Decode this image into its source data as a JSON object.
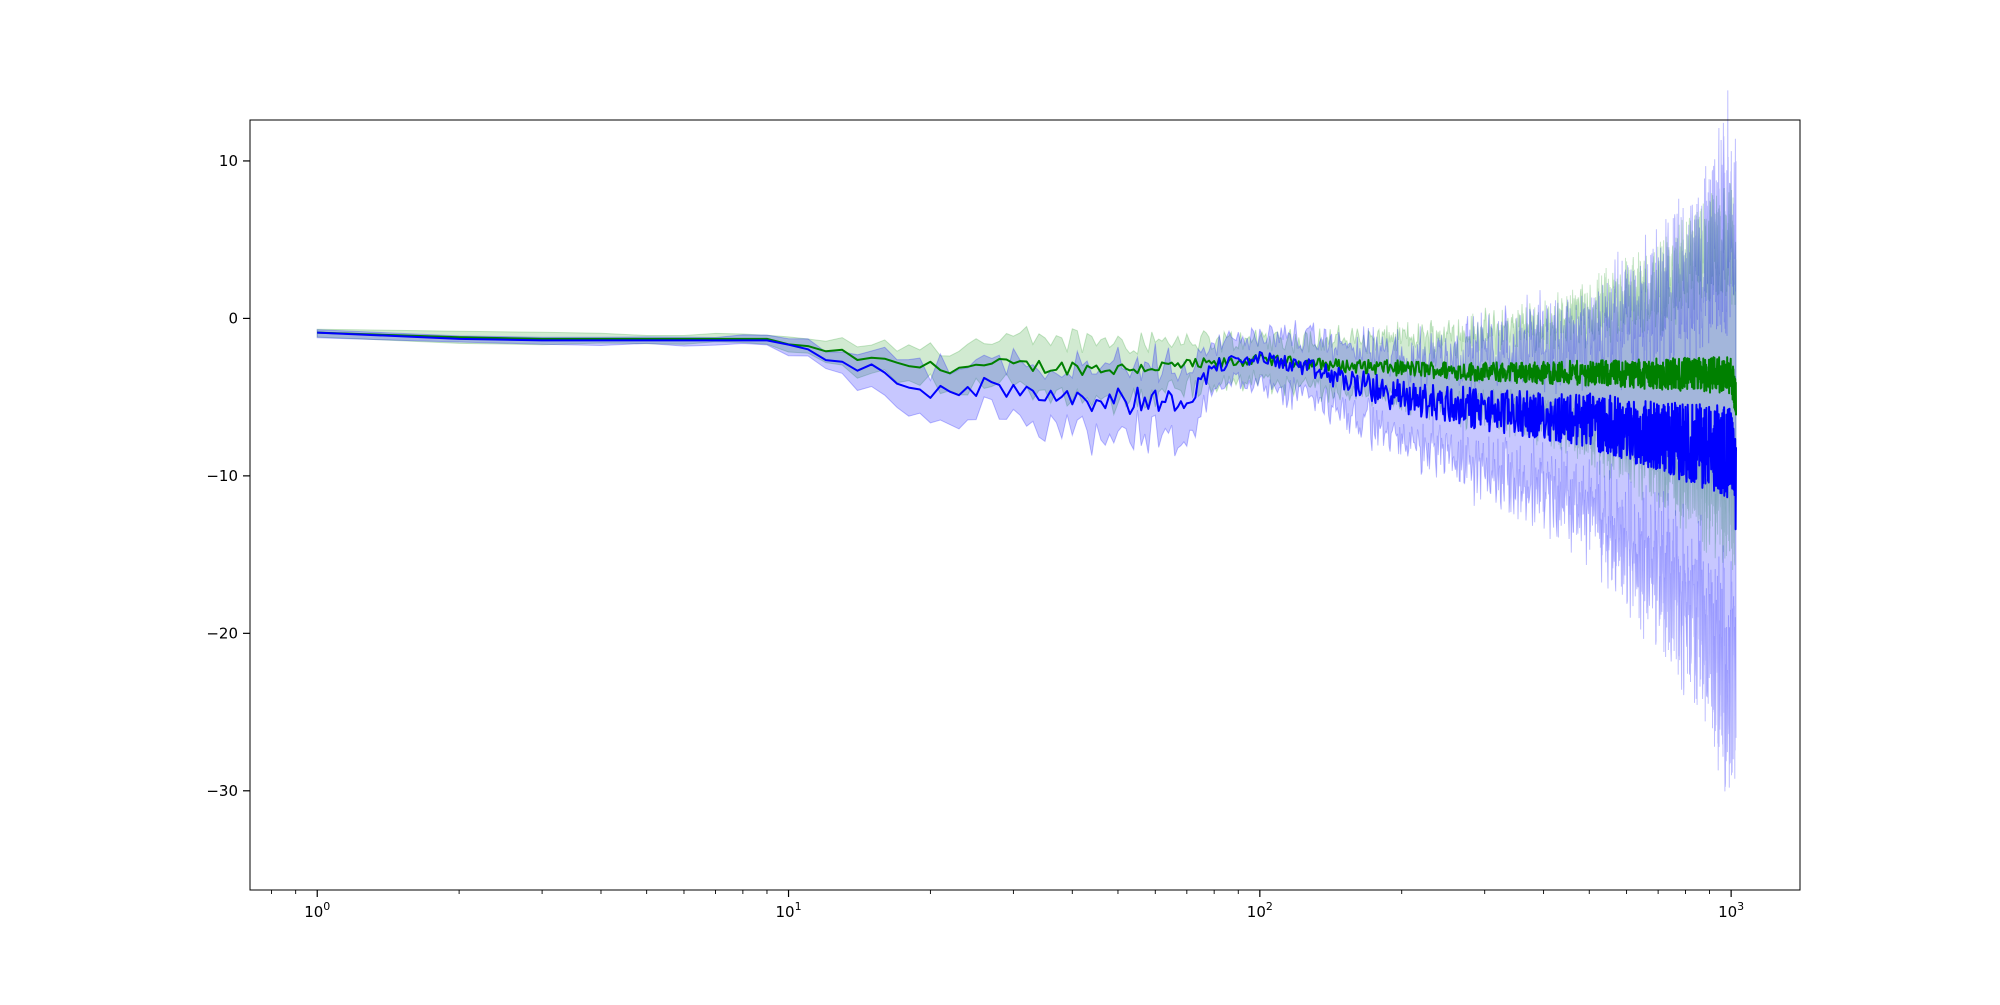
{
  "chart_data": {
    "type": "line",
    "title": "",
    "xlabel": "",
    "ylabel": "",
    "xscale": "log",
    "xlim": [
      0.72,
      1400
    ],
    "ylim": [
      -36.3,
      12.6
    ],
    "grid": false,
    "legend": "none",
    "x_ticks": [
      {
        "value": 1,
        "base": "10",
        "exp": "0"
      },
      {
        "value": 10,
        "base": "10",
        "exp": "1"
      },
      {
        "value": 100,
        "base": "10",
        "exp": "2"
      },
      {
        "value": 1000,
        "base": "10",
        "exp": "3"
      }
    ],
    "y_ticks": [
      {
        "value": 10,
        "label": "10"
      },
      {
        "value": 0,
        "label": "0"
      },
      {
        "value": -10,
        "label": "−10"
      },
      {
        "value": -20,
        "label": "−20"
      },
      {
        "value": -30,
        "label": "−30"
      }
    ],
    "x_range": [
      1,
      1024
    ],
    "series": [
      {
        "color": "#008000",
        "band_color": "#2ca02c",
        "anchors": [
          [
            1,
            -0.9
          ],
          [
            2,
            -1.2
          ],
          [
            3,
            -1.3
          ],
          [
            5,
            -1.3
          ],
          [
            9,
            -1.3
          ],
          [
            10,
            -1.8
          ],
          [
            12,
            -2.0
          ],
          [
            15,
            -2.7
          ],
          [
            20,
            -3.1
          ],
          [
            30,
            -3.0
          ],
          [
            50,
            -3.2
          ],
          [
            80,
            -2.9
          ],
          [
            100,
            -2.6
          ],
          [
            150,
            -3.0
          ],
          [
            300,
            -3.4
          ],
          [
            600,
            -3.5
          ],
          [
            1000,
            -3.6
          ],
          [
            1024,
            -5.0
          ]
        ],
        "band_anchors": [
          [
            1,
            0.3
          ],
          [
            2,
            0.4
          ],
          [
            9,
            0.3
          ],
          [
            10,
            0.6
          ],
          [
            20,
            1.5
          ],
          [
            50,
            2.2
          ],
          [
            80,
            1.6
          ],
          [
            100,
            1.5
          ],
          [
            200,
            2.2
          ],
          [
            400,
            3.5
          ],
          [
            700,
            6.5
          ],
          [
            1000,
            10.0
          ],
          [
            1024,
            9.5
          ]
        ],
        "noise_anchors": [
          [
            1,
            0
          ],
          [
            9,
            0
          ],
          [
            10,
            0.2
          ],
          [
            30,
            0.5
          ],
          [
            80,
            0.4
          ],
          [
            100,
            0.3
          ],
          [
            200,
            0.5
          ],
          [
            500,
            0.8
          ],
          [
            1000,
            1.2
          ]
        ]
      },
      {
        "color": "#0000ff",
        "band_color": "#0000ff",
        "anchors": [
          [
            1,
            -0.9
          ],
          [
            2,
            -1.3
          ],
          [
            3,
            -1.4
          ],
          [
            5,
            -1.4
          ],
          [
            9,
            -1.4
          ],
          [
            10,
            -1.9
          ],
          [
            12,
            -2.5
          ],
          [
            15,
            -3.4
          ],
          [
            20,
            -4.4
          ],
          [
            30,
            -4.4
          ],
          [
            50,
            -5.2
          ],
          [
            70,
            -5.2
          ],
          [
            80,
            -3.0
          ],
          [
            100,
            -2.5
          ],
          [
            120,
            -3.0
          ],
          [
            200,
            -5.0
          ],
          [
            300,
            -5.8
          ],
          [
            500,
            -6.5
          ],
          [
            700,
            -7.5
          ],
          [
            1000,
            -8.5
          ],
          [
            1024,
            -11.0
          ]
        ],
        "band_anchors": [
          [
            1,
            0.3
          ],
          [
            2,
            0.3
          ],
          [
            9,
            0.3
          ],
          [
            10,
            0.6
          ],
          [
            20,
            1.8
          ],
          [
            50,
            2.5
          ],
          [
            70,
            2.5
          ],
          [
            80,
            1.6
          ],
          [
            100,
            1.8
          ],
          [
            200,
            3.0
          ],
          [
            300,
            4.5
          ],
          [
            500,
            6.5
          ],
          [
            700,
            10.0
          ],
          [
            900,
            14.0
          ],
          [
            1000,
            18.0
          ],
          [
            1024,
            17.0
          ]
        ],
        "noise_anchors": [
          [
            1,
            0
          ],
          [
            9,
            0
          ],
          [
            10,
            0.4
          ],
          [
            20,
            0.7
          ],
          [
            50,
            1.0
          ],
          [
            80,
            0.5
          ],
          [
            100,
            0.4
          ],
          [
            200,
            1.1
          ],
          [
            400,
            1.5
          ],
          [
            700,
            2.2
          ],
          [
            1000,
            3.0
          ]
        ]
      }
    ]
  }
}
